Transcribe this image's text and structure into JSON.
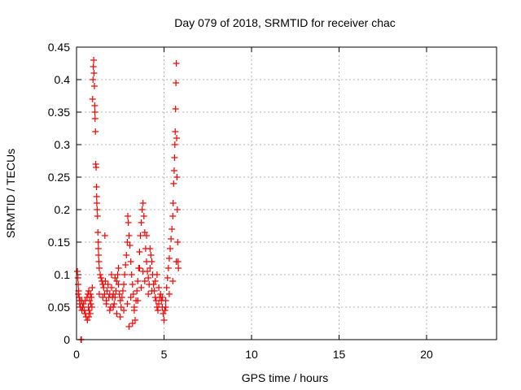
{
  "chart_data": {
    "type": "scatter",
    "title": "Day 079 of 2018, SRMTID for receiver chac",
    "xlabel": "GPS time / hours",
    "ylabel": "SRMTID / TECUs",
    "xlim": [
      0,
      24
    ],
    "ylim": [
      0,
      0.45
    ],
    "xticks": [
      0,
      5,
      10,
      15,
      20
    ],
    "yticks": [
      0,
      0.05,
      0.1,
      0.15,
      0.2,
      0.25,
      0.3,
      0.35,
      0.4,
      0.45
    ],
    "xtick_labels": [
      "0",
      "5",
      "10",
      "15",
      "20"
    ],
    "ytick_labels": [
      "0",
      "0.05",
      "0.1",
      "0.15",
      "0.2",
      "0.25",
      "0.3",
      "0.35",
      "0.4",
      "0.45"
    ],
    "grid": true,
    "marker": "+",
    "series": [
      {
        "name": "SRMTID",
        "color": "#ff0000",
        "points": [
          [
            0.05,
            0.105
          ],
          [
            0.08,
            0.095
          ],
          [
            0.1,
            0.085
          ],
          [
            0.12,
            0.075
          ],
          [
            0.15,
            0.065
          ],
          [
            0.18,
            0.055
          ],
          [
            0.2,
            0.06
          ],
          [
            0.22,
            0.05
          ],
          [
            0.25,
            0.0
          ],
          [
            0.28,
            0.0
          ],
          [
            0.3,
            0.045
          ],
          [
            0.35,
            0.05
          ],
          [
            0.4,
            0.055
          ],
          [
            0.45,
            0.045
          ],
          [
            0.5,
            0.06
          ],
          [
            0.55,
            0.035
          ],
          [
            0.6,
            0.065
          ],
          [
            0.62,
            0.03
          ],
          [
            0.65,
            0.07
          ],
          [
            0.68,
            0.05
          ],
          [
            0.7,
            0.075
          ],
          [
            0.72,
            0.045
          ],
          [
            0.75,
            0.06
          ],
          [
            0.78,
            0.04
          ],
          [
            0.8,
            0.07
          ],
          [
            0.82,
            0.055
          ],
          [
            0.85,
            0.065
          ],
          [
            0.88,
            0.05
          ],
          [
            0.9,
            0.08
          ],
          [
            0.92,
            0.37
          ],
          [
            0.94,
            0.4
          ],
          [
            0.96,
            0.42
          ],
          [
            0.98,
            0.43
          ],
          [
            1.0,
            0.41
          ],
          [
            1.02,
            0.39
          ],
          [
            1.04,
            0.36
          ],
          [
            1.06,
            0.34
          ],
          [
            1.08,
            0.32
          ],
          [
            1.1,
            0.27
          ],
          [
            1.12,
            0.265
          ],
          [
            1.14,
            0.235
          ],
          [
            1.16,
            0.21
          ],
          [
            1.18,
            0.2
          ],
          [
            1.2,
            0.19
          ],
          [
            1.22,
            0.165
          ],
          [
            1.24,
            0.15
          ],
          [
            1.26,
            0.13
          ],
          [
            1.28,
            0.12
          ],
          [
            1.3,
            0.11
          ],
          [
            1.35,
            0.1
          ],
          [
            1.4,
            0.095
          ],
          [
            1.45,
            0.09
          ],
          [
            1.5,
            0.085
          ],
          [
            1.55,
            0.08
          ],
          [
            1.6,
            0.07
          ],
          [
            1.62,
            0.16
          ],
          [
            1.65,
            0.09
          ],
          [
            1.7,
            0.06
          ],
          [
            1.75,
            0.075
          ],
          [
            1.8,
            0.085
          ],
          [
            1.85,
            0.065
          ],
          [
            1.9,
            0.07
          ],
          [
            1.95,
            0.05
          ],
          [
            2.0,
            0.08
          ],
          [
            2.05,
            0.065
          ],
          [
            2.1,
            0.07
          ],
          [
            2.15,
            0.055
          ],
          [
            2.2,
            0.065
          ],
          [
            2.25,
            0.075
          ],
          [
            2.3,
            0.09
          ],
          [
            2.35,
            0.1
          ],
          [
            2.4,
            0.085
          ],
          [
            2.45,
            0.07
          ],
          [
            2.5,
            0.06
          ],
          [
            2.55,
            0.05
          ],
          [
            2.6,
            0.065
          ],
          [
            2.65,
            0.075
          ],
          [
            2.7,
            0.085
          ],
          [
            2.75,
            0.1
          ],
          [
            2.8,
            0.115
          ],
          [
            2.85,
            0.13
          ],
          [
            2.9,
            0.15
          ],
          [
            2.93,
            0.19
          ],
          [
            2.96,
            0.18
          ],
          [
            3.0,
            0.16
          ],
          [
            3.05,
            0.145
          ],
          [
            3.1,
            0.12
          ],
          [
            3.15,
            0.1
          ],
          [
            3.2,
            0.085
          ],
          [
            3.25,
            0.07
          ],
          [
            3.3,
            0.05
          ],
          [
            3.35,
            0.03
          ],
          [
            3.4,
            0.06
          ],
          [
            3.45,
            0.075
          ],
          [
            3.5,
            0.09
          ],
          [
            3.55,
            0.11
          ],
          [
            3.6,
            0.135
          ],
          [
            3.65,
            0.16
          ],
          [
            3.7,
            0.18
          ],
          [
            3.75,
            0.2
          ],
          [
            3.8,
            0.21
          ],
          [
            3.85,
            0.19
          ],
          [
            3.9,
            0.165
          ],
          [
            3.95,
            0.14
          ],
          [
            4.0,
            0.12
          ],
          [
            4.05,
            0.105
          ],
          [
            4.1,
            0.095
          ],
          [
            4.15,
            0.085
          ],
          [
            4.2,
            0.11
          ],
          [
            4.25,
            0.13
          ],
          [
            4.3,
            0.12
          ],
          [
            4.35,
            0.1
          ],
          [
            4.4,
            0.085
          ],
          [
            4.45,
            0.075
          ],
          [
            4.5,
            0.065
          ],
          [
            4.55,
            0.06
          ],
          [
            4.6,
            0.05
          ],
          [
            4.65,
            0.045
          ],
          [
            4.7,
            0.055
          ],
          [
            4.75,
            0.065
          ],
          [
            4.8,
            0.07
          ],
          [
            4.85,
            0.06
          ],
          [
            4.9,
            0.05
          ],
          [
            4.95,
            0.04
          ],
          [
            5.0,
            0.03
          ],
          [
            5.05,
            0.045
          ],
          [
            5.1,
            0.06
          ],
          [
            5.15,
            0.08
          ],
          [
            5.2,
            0.095
          ],
          [
            5.25,
            0.11
          ],
          [
            5.3,
            0.125
          ],
          [
            5.35,
            0.14
          ],
          [
            5.4,
            0.155
          ],
          [
            5.45,
            0.17
          ],
          [
            5.5,
            0.19
          ],
          [
            5.52,
            0.21
          ],
          [
            5.55,
            0.24
          ],
          [
            5.58,
            0.26
          ],
          [
            5.6,
            0.28
          ],
          [
            5.62,
            0.3
          ],
          [
            5.64,
            0.32
          ],
          [
            5.66,
            0.355
          ],
          [
            5.68,
            0.395
          ],
          [
            5.7,
            0.425
          ],
          [
            5.72,
            0.31
          ],
          [
            5.74,
            0.25
          ],
          [
            5.76,
            0.2
          ],
          [
            5.78,
            0.15
          ],
          [
            5.8,
            0.12
          ],
          [
            5.82,
            0.11
          ],
          [
            0.1,
            0.07
          ],
          [
            0.3,
            0.06
          ],
          [
            0.5,
            0.04
          ],
          [
            0.7,
            0.035
          ],
          [
            1.3,
            0.07
          ],
          [
            1.5,
            0.065
          ],
          [
            1.7,
            0.055
          ],
          [
            1.9,
            0.045
          ],
          [
            2.1,
            0.05
          ],
          [
            2.3,
            0.04
          ],
          [
            2.5,
            0.035
          ],
          [
            2.7,
            0.045
          ],
          [
            2.9,
            0.055
          ],
          [
            3.1,
            0.065
          ],
          [
            3.3,
            0.045
          ],
          [
            3.5,
            0.06
          ],
          [
            3.7,
            0.08
          ],
          [
            3.9,
            0.09
          ],
          [
            4.1,
            0.07
          ],
          [
            4.3,
            0.075
          ],
          [
            4.5,
            0.09
          ],
          [
            4.7,
            0.08
          ],
          [
            4.9,
            0.065
          ],
          [
            5.1,
            0.05
          ],
          [
            5.3,
            0.07
          ],
          [
            5.5,
            0.09
          ],
          [
            5.7,
            0.12
          ],
          [
            1.05,
            0.35
          ],
          [
            1.15,
            0.22
          ],
          [
            1.25,
            0.14
          ],
          [
            3.0,
            0.02
          ],
          [
            3.2,
            0.025
          ],
          [
            4.0,
            0.16
          ],
          [
            4.2,
            0.14
          ],
          [
            2.0,
            0.1
          ],
          [
            2.2,
            0.095
          ],
          [
            2.4,
            0.11
          ],
          [
            3.6,
            0.11
          ],
          [
            3.8,
            0.105
          ],
          [
            4.6,
            0.1
          ]
        ]
      }
    ]
  }
}
